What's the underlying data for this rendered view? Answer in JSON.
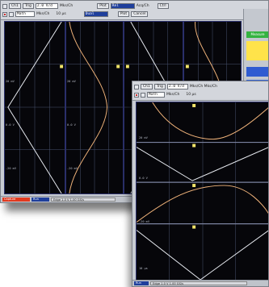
{
  "window_back": {
    "toolbar": {
      "row1": {
        "btn1": "Ch1",
        "btn2": "Trig",
        "field1": "2.0 V/d",
        "label1": "Mks/Ch",
        "btn3": "Plot",
        "field2": "Rel",
        "field3": "",
        "label2": "Acq/Ch",
        "btn4": "Ctrl"
      },
      "row2": {
        "field1": "Math",
        "label1": "Mks/Ch",
        "label2": "10 μs",
        "field2": "Dual",
        "btn1": "Plot",
        "btn2": "Cancel"
      }
    },
    "sidebar": {
      "green_label": "Measure",
      "blue_label": "Auto"
    },
    "status": {
      "red": "Capture",
      "blue": "Run",
      "grey": "Edge  1.0 V  1.00 GS/s"
    }
  },
  "window_front": {
    "toolbar": {
      "row1": {
        "btn1": "Ch1",
        "btn2": "Trig",
        "field1": "2.0 V/d",
        "label1": "Mks/Ch  Mks/Ch",
        "btn3": "Plot"
      },
      "row2": {
        "field1": "Math",
        "label1": "Mks/Ch",
        "label2": "10 μs"
      }
    },
    "status": {
      "blue": "Run",
      "grey": "Edge  1.0 V  1.00 GS/s"
    }
  },
  "grid_labels": {
    "a": "20 mV",
    "b": "0.0 V",
    "c": "-20 mV",
    "d": "10 μs"
  },
  "colors": {
    "trace_white": "#e9ecf2",
    "trace_orange": "#f0b37a",
    "marker": "#f3e56a",
    "grid": "#4a5470"
  }
}
